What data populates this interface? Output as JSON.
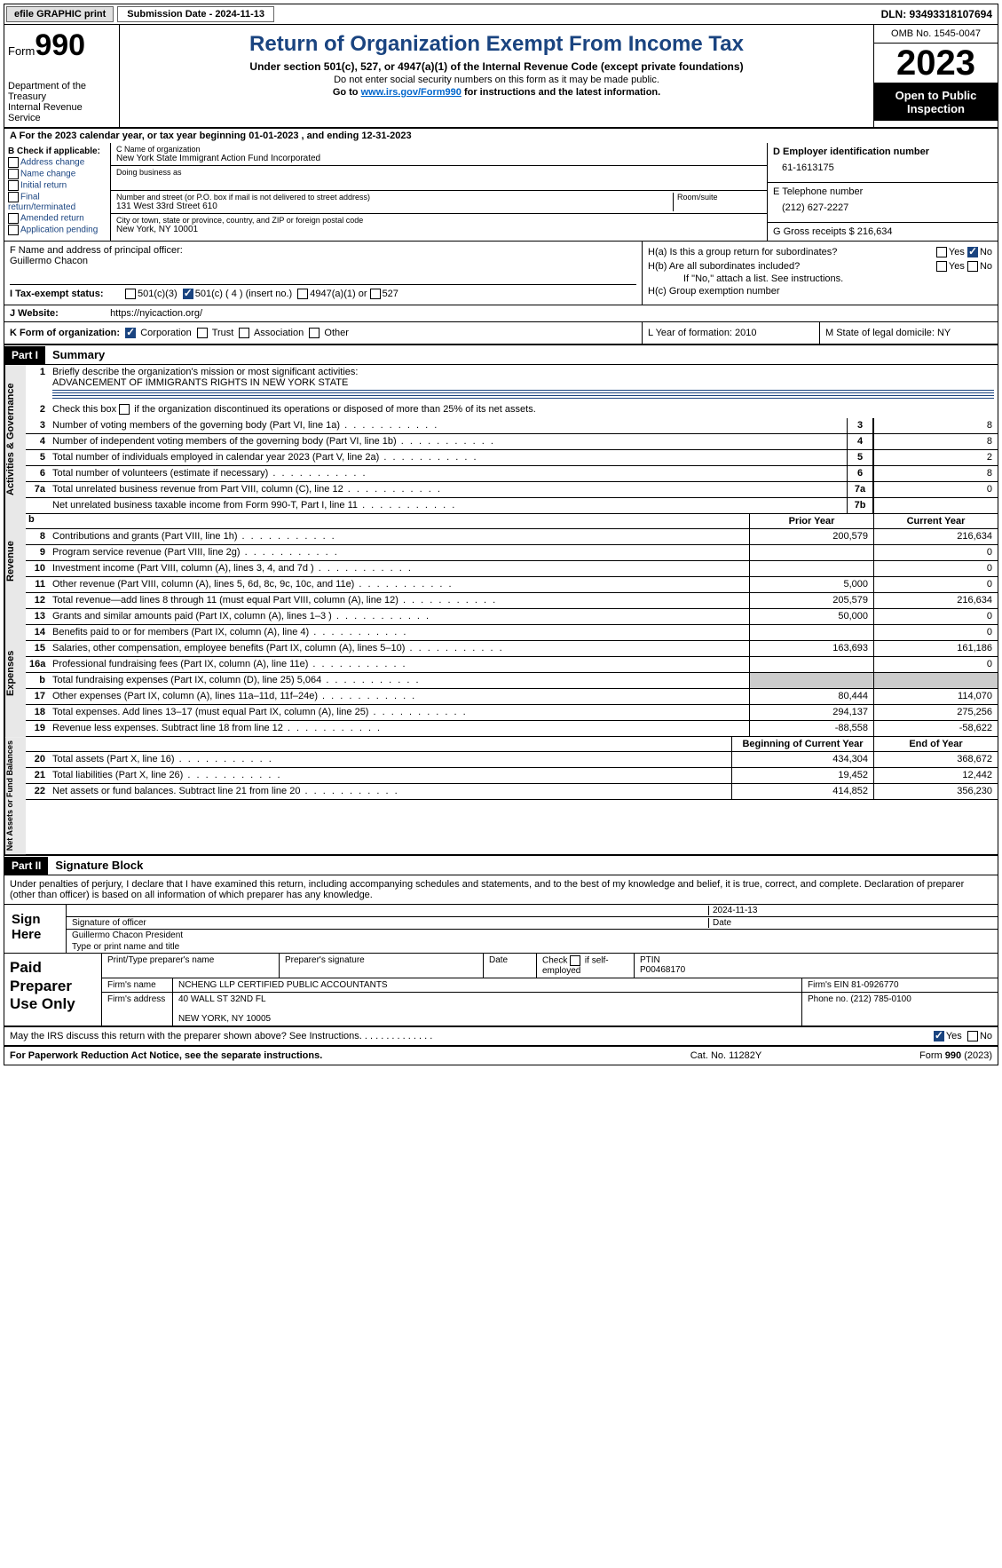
{
  "topbar": {
    "efile": "efile GRAPHIC print",
    "submission": "Submission Date - 2024-11-13",
    "dln": "DLN: 93493318107694"
  },
  "header": {
    "form_prefix": "Form",
    "form_number": "990",
    "dept": "Department of the Treasury",
    "irs": "Internal Revenue Service",
    "title": "Return of Organization Exempt From Income Tax",
    "sub1": "Under section 501(c), 527, or 4947(a)(1) of the Internal Revenue Code (except private foundations)",
    "sub2": "Do not enter social security numbers on this form as it may be made public.",
    "sub3_pre": "Go to ",
    "sub3_link": "www.irs.gov/Form990",
    "sub3_post": " for instructions and the latest information.",
    "omb": "OMB No. 1545-0047",
    "year": "2023",
    "open": "Open to Public Inspection"
  },
  "lineA": "For the 2023 calendar year, or tax year beginning 01-01-2023   , and ending 12-31-2023",
  "boxB": {
    "title": "B Check if applicable:",
    "opts": [
      "Address change",
      "Name change",
      "Initial return",
      "Final return/terminated",
      "Amended return",
      "Application pending"
    ]
  },
  "boxC": {
    "name_lbl": "C Name of organization",
    "name": "New York State Immigrant Action Fund Incorporated",
    "dba_lbl": "Doing business as",
    "addr_lbl": "Number and street (or P.O. box if mail is not delivered to street address)",
    "room_lbl": "Room/suite",
    "addr": "131 West 33rd Street 610",
    "city_lbl": "City or town, state or province, country, and ZIP or foreign postal code",
    "city": "New York, NY  10001"
  },
  "boxD": {
    "lbl": "D Employer identification number",
    "val": "61-1613175"
  },
  "boxE": {
    "lbl": "E Telephone number",
    "val": "(212) 627-2227"
  },
  "boxG": {
    "lbl": "G Gross receipts $ 216,634"
  },
  "boxF": {
    "lbl": "F  Name and address of principal officer:",
    "val": "Guillermo Chacon"
  },
  "boxH": {
    "a": "H(a)  Is this a group return for subordinates?",
    "b": "H(b)  Are all subordinates included?",
    "note": "If \"No,\" attach a list. See instructions.",
    "c": "H(c)  Group exemption number",
    "yes": "Yes",
    "no": "No"
  },
  "lineI": {
    "lbl": "I   Tax-exempt status:",
    "o1": "501(c)(3)",
    "o2": "501(c) ( 4 ) (insert no.)",
    "o3": "4947(a)(1) or",
    "o4": "527"
  },
  "lineJ": {
    "lbl": "J   Website:",
    "val": "https://nyicaction.org/"
  },
  "lineK": {
    "lbl": "K Form of organization:",
    "o1": "Corporation",
    "o2": "Trust",
    "o3": "Association",
    "o4": "Other"
  },
  "lineL": "L Year of formation: 2010",
  "lineM": "M State of legal domicile: NY",
  "part1": {
    "tag": "Part I",
    "title": "Summary"
  },
  "vtabs": {
    "ag": "Activities & Governance",
    "rev": "Revenue",
    "exp": "Expenses",
    "na": "Net Assets or Fund Balances"
  },
  "s1": {
    "n": "1",
    "t": "Briefly describe the organization's mission or most significant activities:",
    "mission": "ADVANCEMENT OF IMMIGRANTS RIGHTS IN NEW YORK STATE"
  },
  "s2": {
    "n": "2",
    "t": "Check this box      if the organization discontinued its operations or disposed of more than 25% of its net assets."
  },
  "rows_ag": [
    {
      "n": "3",
      "t": "Number of voting members of the governing body (Part VI, line 1a)",
      "nc": "3",
      "v": "8"
    },
    {
      "n": "4",
      "t": "Number of independent voting members of the governing body (Part VI, line 1b)",
      "nc": "4",
      "v": "8"
    },
    {
      "n": "5",
      "t": "Total number of individuals employed in calendar year 2023 (Part V, line 2a)",
      "nc": "5",
      "v": "2"
    },
    {
      "n": "6",
      "t": "Total number of volunteers (estimate if necessary)",
      "nc": "6",
      "v": "8"
    },
    {
      "n": "7a",
      "t": "Total unrelated business revenue from Part VIII, column (C), line 12",
      "nc": "7a",
      "v": "0"
    },
    {
      "n": "",
      "t": "Net unrelated business taxable income from Form 990-T, Part I, line 11",
      "nc": "7b",
      "v": ""
    }
  ],
  "colhdr_rev": {
    "py": "Prior Year",
    "cy": "Current Year"
  },
  "rows_rev": [
    {
      "n": "8",
      "t": "Contributions and grants (Part VIII, line 1h)",
      "py": "200,579",
      "cy": "216,634"
    },
    {
      "n": "9",
      "t": "Program service revenue (Part VIII, line 2g)",
      "py": "",
      "cy": "0"
    },
    {
      "n": "10",
      "t": "Investment income (Part VIII, column (A), lines 3, 4, and 7d )",
      "py": "",
      "cy": "0"
    },
    {
      "n": "11",
      "t": "Other revenue (Part VIII, column (A), lines 5, 6d, 8c, 9c, 10c, and 11e)",
      "py": "5,000",
      "cy": "0"
    },
    {
      "n": "12",
      "t": "Total revenue—add lines 8 through 11 (must equal Part VIII, column (A), line 12)",
      "py": "205,579",
      "cy": "216,634"
    }
  ],
  "rows_exp": [
    {
      "n": "13",
      "t": "Grants and similar amounts paid (Part IX, column (A), lines 1–3 )",
      "py": "50,000",
      "cy": "0"
    },
    {
      "n": "14",
      "t": "Benefits paid to or for members (Part IX, column (A), line 4)",
      "py": "",
      "cy": "0"
    },
    {
      "n": "15",
      "t": "Salaries, other compensation, employee benefits (Part IX, column (A), lines 5–10)",
      "py": "163,693",
      "cy": "161,186"
    },
    {
      "n": "16a",
      "t": "Professional fundraising fees (Part IX, column (A), line 11e)",
      "py": "",
      "cy": "0"
    },
    {
      "n": "b",
      "t": "Total fundraising expenses (Part IX, column (D), line 25) 5,064",
      "py": "grey",
      "cy": "grey"
    },
    {
      "n": "17",
      "t": "Other expenses (Part IX, column (A), lines 11a–11d, 11f–24e)",
      "py": "80,444",
      "cy": "114,070"
    },
    {
      "n": "18",
      "t": "Total expenses. Add lines 13–17 (must equal Part IX, column (A), line 25)",
      "py": "294,137",
      "cy": "275,256"
    },
    {
      "n": "19",
      "t": "Revenue less expenses. Subtract line 18 from line 12",
      "py": "-88,558",
      "cy": "-58,622"
    }
  ],
  "colhdr_na": {
    "py": "Beginning of Current Year",
    "cy": "End of Year"
  },
  "rows_na": [
    {
      "n": "20",
      "t": "Total assets (Part X, line 16)",
      "py": "434,304",
      "cy": "368,672"
    },
    {
      "n": "21",
      "t": "Total liabilities (Part X, line 26)",
      "py": "19,452",
      "cy": "12,442"
    },
    {
      "n": "22",
      "t": "Net assets or fund balances. Subtract line 21 from line 20",
      "py": "414,852",
      "cy": "356,230"
    }
  ],
  "part2": {
    "tag": "Part II",
    "title": "Signature Block"
  },
  "perjury": "Under penalties of perjury, I declare that I have examined this return, including accompanying schedules and statements, and to the best of my knowledge and belief, it is true, correct, and complete. Declaration of preparer (other than officer) is based on all information of which preparer has any knowledge.",
  "sign": {
    "here": "Sign Here",
    "date": "2024-11-13",
    "sig_lbl": "Signature of officer",
    "date_lbl": "Date",
    "name": "Guillermo Chacon  President",
    "name_lbl": "Type or print name and title"
  },
  "prep": {
    "title": "Paid Preparer Use Only",
    "h1": "Print/Type preparer's name",
    "h2": "Preparer's signature",
    "h3": "Date",
    "h4_pre": "Check",
    "h4_post": "if self-employed",
    "h5": "PTIN",
    "ptin": "P00468170",
    "firm_lbl": "Firm's name",
    "firm": "NCHENG LLP CERTIFIED PUBLIC ACCOUNTANTS",
    "ein_lbl": "Firm's EIN",
    "ein": "81-0926770",
    "addr_lbl": "Firm's address",
    "addr1": "40 WALL ST 32ND FL",
    "addr2": "NEW YORK, NY  10005",
    "phone_lbl": "Phone no.",
    "phone": "(212) 785-0100"
  },
  "discuss": {
    "t": "May the IRS discuss this return with the preparer shown above? See Instructions.",
    "yes": "Yes",
    "no": "No"
  },
  "footer": {
    "l": "For Paperwork Reduction Act Notice, see the separate instructions.",
    "c": "Cat. No. 11282Y",
    "r": "Form 990 (2023)"
  }
}
